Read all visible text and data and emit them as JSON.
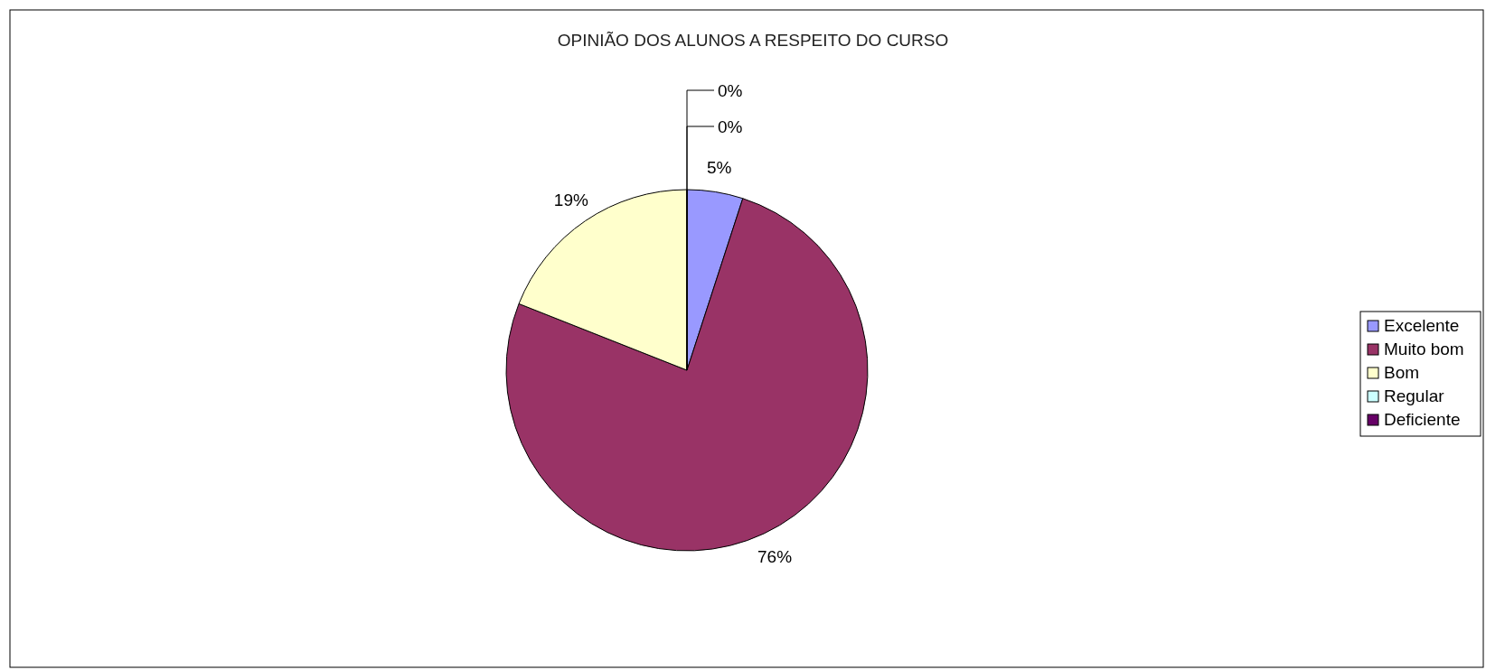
{
  "chart_data": {
    "type": "pie",
    "title": "OPINIÃO DOS ALUNOS A RESPEITO DO CURSO",
    "categories": [
      "Excelente",
      "Muito bom",
      "Bom",
      "Regular",
      "Deficiente"
    ],
    "values": [
      5,
      76,
      19,
      0,
      0
    ],
    "colors": [
      "#9999ff",
      "#993366",
      "#ffffcc",
      "#ccffff",
      "#660066"
    ],
    "value_labels": [
      "5%",
      "76%",
      "19%",
      "0%",
      "0%"
    ],
    "legend": "right"
  }
}
